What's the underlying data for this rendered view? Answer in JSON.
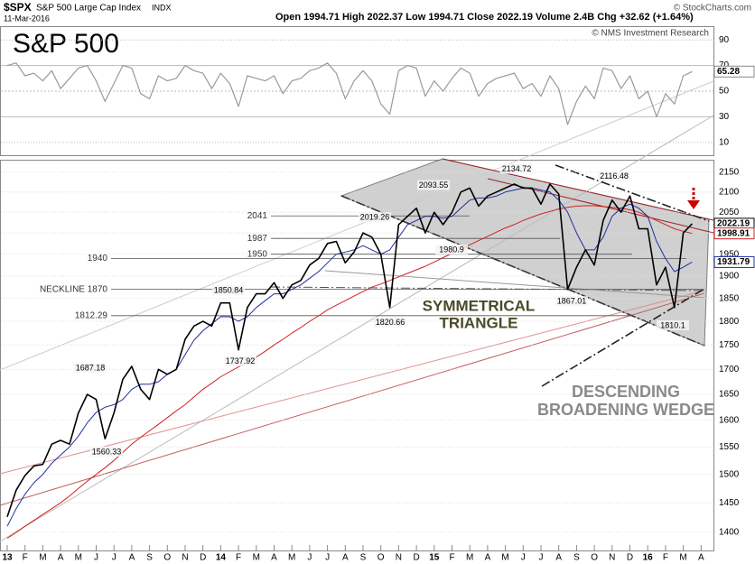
{
  "header": {
    "symbol": "$SPX",
    "name": "S&P 500 Large Cap Index",
    "exchange": "INDX",
    "date": "11-Mar-2016",
    "quote": "Open 1994.71 High 2022.37 Low 1994.71 Close 2022.19 Volume 2.4B Chg +32.62 (+1.64%)",
    "source": "© StockCharts.com",
    "credit": "© NMS Investment Research"
  },
  "chart_data": [
    {
      "type": "line",
      "title": "S&P 500",
      "log_scale": true,
      "grid": true,
      "categories": [
        "13",
        null,
        "F",
        null,
        "M",
        null,
        "A",
        null,
        "M",
        null,
        "J",
        null,
        "J",
        null,
        "A",
        null,
        "S",
        null,
        "O",
        null,
        "N",
        null,
        "D",
        null,
        "14",
        null,
        "F",
        null,
        "M",
        null,
        "A",
        null,
        "M",
        null,
        "J",
        null,
        "J",
        null,
        "A",
        null,
        "S",
        null,
        "O",
        null,
        "N",
        null,
        "D",
        null,
        "15",
        null,
        "F",
        null,
        "M",
        null,
        "A",
        null,
        "M",
        null,
        "J",
        null,
        "J",
        null,
        "A",
        null,
        "S",
        null,
        "O",
        null,
        "N",
        null,
        "D",
        null,
        "16",
        null,
        "F",
        null,
        "M",
        null,
        "A",
        null
      ],
      "series": [
        {
          "color": "#000000",
          "values": [
            1426,
            1472,
            1498,
            1515,
            1518,
            1555,
            1562,
            1555,
            1614,
            1650,
            1640,
            1565,
            1614,
            1680,
            1706,
            1660,
            1640,
            1700,
            1690,
            1700,
            1762,
            1790,
            1800,
            1790,
            1840,
            1840,
            1740,
            1830,
            1860,
            1860,
            1885,
            1850,
            1880,
            1890,
            1925,
            1940,
            1975,
            1980,
            1930,
            1955,
            2000,
            1990,
            1950,
            1830,
            2020,
            2040,
            2060,
            2000,
            2050,
            2020,
            2050,
            2100,
            2110,
            2065,
            2090,
            2100,
            2110,
            2120,
            2110,
            2110,
            2070,
            2120,
            2095,
            1870,
            1920,
            1960,
            1925,
            2030,
            2080,
            2050,
            2090,
            2010,
            2010,
            1880,
            1920,
            1830,
            2000,
            2022.19,
            null,
            null
          ]
        },
        {
          "color": "#1f2fa0",
          "values": [
            1410,
            1440,
            1465,
            1485,
            1500,
            1520,
            1535,
            1550,
            1570,
            1595,
            1615,
            1625,
            1630,
            1640,
            1660,
            1670,
            1670,
            1675,
            1690,
            1700,
            1730,
            1760,
            1780,
            1795,
            1810,
            1810,
            1800,
            1810,
            1830,
            1845,
            1860,
            1860,
            1870,
            1880,
            1895,
            1910,
            1930,
            1950,
            1955,
            1960,
            1970,
            1960,
            1950,
            1960,
            1990,
            2020,
            2030,
            2040,
            2040,
            2035,
            2040,
            2060,
            2080,
            2085,
            2085,
            2090,
            2100,
            2105,
            2110,
            2110,
            2105,
            2100,
            2080,
            2050,
            2000,
            1960,
            1960,
            1990,
            2040,
            2060,
            2070,
            2060,
            2040,
            1980,
            1940,
            1910,
            1920,
            1931.79,
            null,
            null
          ]
        },
        {
          "color": "#d02020",
          "values": [
            1390,
            1400,
            1410,
            1420,
            1430,
            1440,
            1450,
            1462,
            1475,
            1488,
            1500,
            1512,
            1525,
            1540,
            1555,
            1568,
            1580,
            1592,
            1605,
            1618,
            1630,
            1645,
            1660,
            1672,
            1685,
            1695,
            1705,
            1715,
            1725,
            1737,
            1750,
            1762,
            1775,
            1787,
            1800,
            1812,
            1825,
            1835,
            1845,
            1855,
            1865,
            1875,
            1882,
            1890,
            1898,
            1906,
            1914,
            1922,
            1932,
            1942,
            1952,
            1962,
            1972,
            1982,
            1992,
            2002,
            2012,
            2020,
            2030,
            2038,
            2046,
            2052,
            2058,
            2062,
            2065,
            2066,
            2066,
            2064,
            2062,
            2060,
            2056,
            2050,
            2040,
            2030,
            2020,
            2010,
            2004,
            1998.91,
            null,
            null
          ]
        }
      ],
      "ylim": [
        1370,
        2180
      ],
      "yticks": [
        1400,
        1450,
        1500,
        1550,
        1600,
        1650,
        1700,
        1750,
        1800,
        1850,
        1900,
        1950,
        2000,
        2050,
        2100,
        2150
      ],
      "levels": [
        2041,
        1987,
        1950,
        1940,
        {
          "value": 1870,
          "label": "NECKLINE 1870"
        },
        1812.29
      ],
      "point_labels": [
        2134.72,
        2116.48,
        2093.55,
        2019.26,
        1980.9,
        1850.84,
        1820.66,
        1867.01,
        1810.1,
        1737.92,
        1687.18,
        1560.33
      ],
      "patterns": [
        [
          "SYMMETRICAL",
          "TRIANGLE"
        ],
        [
          "DESCENDING",
          "BROADENING WEDGE"
        ]
      ]
    },
    {
      "type": "line",
      "series": [
        {
          "color": "#9a9a9a",
          "values": [
            70,
            72,
            62,
            64,
            58,
            66,
            52,
            60,
            68,
            70,
            58,
            42,
            56,
            70,
            68,
            48,
            44,
            62,
            58,
            60,
            70,
            66,
            64,
            52,
            64,
            56,
            38,
            62,
            60,
            58,
            62,
            48,
            58,
            60,
            66,
            68,
            72,
            64,
            44,
            58,
            66,
            58,
            40,
            32,
            66,
            70,
            68,
            46,
            58,
            50,
            60,
            68,
            64,
            46,
            56,
            60,
            62,
            64,
            52,
            56,
            46,
            62,
            52,
            24,
            42,
            54,
            44,
            68,
            66,
            52,
            62,
            44,
            50,
            30,
            48,
            40,
            62,
            65.28,
            null,
            null
          ]
        }
      ],
      "ylim": [
        0,
        100
      ],
      "yticks": [
        10,
        30,
        50,
        70,
        90
      ]
    }
  ]
}
